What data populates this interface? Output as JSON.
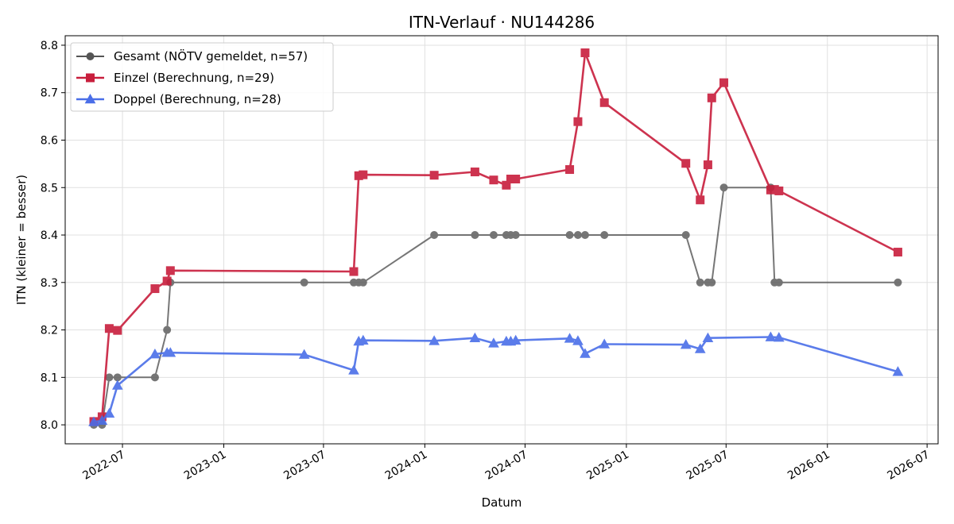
{
  "chart_data": {
    "type": "line",
    "title": "ITN-Verlauf · NU144286",
    "xlabel": "Datum",
    "ylabel": "ITN  (kleiner = besser)",
    "xlim": [
      "2022-03-19",
      "2026-07-21"
    ],
    "ylim": [
      7.96,
      8.82
    ],
    "grid": true,
    "legend_position": "top-left",
    "x_ticks": [
      "2022-07",
      "2023-01",
      "2023-07",
      "2024-01",
      "2024-07",
      "2025-01",
      "2025-07",
      "2026-01",
      "2026-07"
    ],
    "y_ticks": [
      "8.0",
      "8.1",
      "8.2",
      "8.3",
      "8.4",
      "8.5",
      "8.6",
      "8.7",
      "8.8"
    ],
    "series": [
      {
        "name": "Gesamt (NÖTV gemeldet, n=57)",
        "color": "#555555",
        "marker": "circle",
        "points": [
          [
            "2022-05-10",
            8.0
          ],
          [
            "2022-05-25",
            8.0
          ],
          [
            "2022-06-07",
            8.1
          ],
          [
            "2022-06-22",
            8.1
          ],
          [
            "2022-08-29",
            8.1
          ],
          [
            "2022-09-20",
            8.2
          ],
          [
            "2022-09-26",
            8.3
          ],
          [
            "2023-05-27",
            8.3
          ],
          [
            "2023-08-25",
            8.3
          ],
          [
            "2023-09-03",
            8.3
          ],
          [
            "2023-09-11",
            8.3
          ],
          [
            "2024-01-18",
            8.4
          ],
          [
            "2024-04-01",
            8.4
          ],
          [
            "2024-05-05",
            8.4
          ],
          [
            "2024-05-28",
            8.4
          ],
          [
            "2024-06-05",
            8.4
          ],
          [
            "2024-06-14",
            8.4
          ],
          [
            "2024-09-20",
            8.4
          ],
          [
            "2024-10-05",
            8.4
          ],
          [
            "2024-10-18",
            8.4
          ],
          [
            "2024-11-22",
            8.4
          ],
          [
            "2025-04-19",
            8.4
          ],
          [
            "2025-05-15",
            8.3
          ],
          [
            "2025-05-29",
            8.3
          ],
          [
            "2025-06-05",
            8.3
          ],
          [
            "2025-06-27",
            8.5
          ],
          [
            "2025-09-20",
            8.5
          ],
          [
            "2025-09-27",
            8.3
          ],
          [
            "2025-10-05",
            8.3
          ],
          [
            "2026-05-09",
            8.3
          ]
        ]
      },
      {
        "name": "Einzel (Berechnung, n=29)",
        "color": "#c81e3c",
        "marker": "square",
        "points": [
          [
            "2022-05-10",
            8.007
          ],
          [
            "2022-05-25",
            8.017
          ],
          [
            "2022-06-07",
            8.203
          ],
          [
            "2022-06-22",
            8.199
          ],
          [
            "2022-08-29",
            8.287
          ],
          [
            "2022-09-20",
            8.303
          ],
          [
            "2022-09-26",
            8.325
          ],
          [
            "2023-08-25",
            8.323
          ],
          [
            "2023-09-03",
            8.525
          ],
          [
            "2023-09-11",
            8.527
          ],
          [
            "2024-01-18",
            8.526
          ],
          [
            "2024-04-01",
            8.533
          ],
          [
            "2024-05-05",
            8.516
          ],
          [
            "2024-05-28",
            8.505
          ],
          [
            "2024-06-05",
            8.518
          ],
          [
            "2024-06-14",
            8.518
          ],
          [
            "2024-09-20",
            8.538
          ],
          [
            "2024-10-05",
            8.639
          ],
          [
            "2024-10-18",
            8.784
          ],
          [
            "2024-11-22",
            8.679
          ],
          [
            "2025-04-19",
            8.551
          ],
          [
            "2025-05-15",
            8.474
          ],
          [
            "2025-05-29",
            8.548
          ],
          [
            "2025-06-05",
            8.689
          ],
          [
            "2025-06-27",
            8.721
          ],
          [
            "2025-09-20",
            8.495
          ],
          [
            "2025-09-27",
            8.496
          ],
          [
            "2025-10-05",
            8.493
          ],
          [
            "2026-05-09",
            8.364
          ]
        ]
      },
      {
        "name": "Doppel (Berechnung, n=28)",
        "color": "#4a6ee8",
        "marker": "triangle",
        "points": [
          [
            "2022-05-10",
            8.006
          ],
          [
            "2022-05-25",
            8.009
          ],
          [
            "2022-06-07",
            8.024
          ],
          [
            "2022-06-22",
            8.083
          ],
          [
            "2022-08-29",
            8.149
          ],
          [
            "2022-09-20",
            8.152
          ],
          [
            "2022-09-26",
            8.152
          ],
          [
            "2023-05-27",
            8.148
          ],
          [
            "2023-08-25",
            8.115
          ],
          [
            "2023-09-03",
            8.176
          ],
          [
            "2023-09-11",
            8.178
          ],
          [
            "2024-01-18",
            8.177
          ],
          [
            "2024-04-01",
            8.183
          ],
          [
            "2024-05-05",
            8.172
          ],
          [
            "2024-05-28",
            8.176
          ],
          [
            "2024-06-05",
            8.176
          ],
          [
            "2024-06-14",
            8.178
          ],
          [
            "2024-09-20",
            8.182
          ],
          [
            "2024-10-05",
            8.177
          ],
          [
            "2024-10-18",
            8.15
          ],
          [
            "2024-11-22",
            8.17
          ],
          [
            "2025-04-19",
            8.169
          ],
          [
            "2025-05-15",
            8.16
          ],
          [
            "2025-05-29",
            8.183
          ],
          [
            "2025-09-20",
            8.185
          ],
          [
            "2025-10-05",
            8.184
          ],
          [
            "2026-05-09",
            8.112
          ]
        ]
      }
    ]
  }
}
